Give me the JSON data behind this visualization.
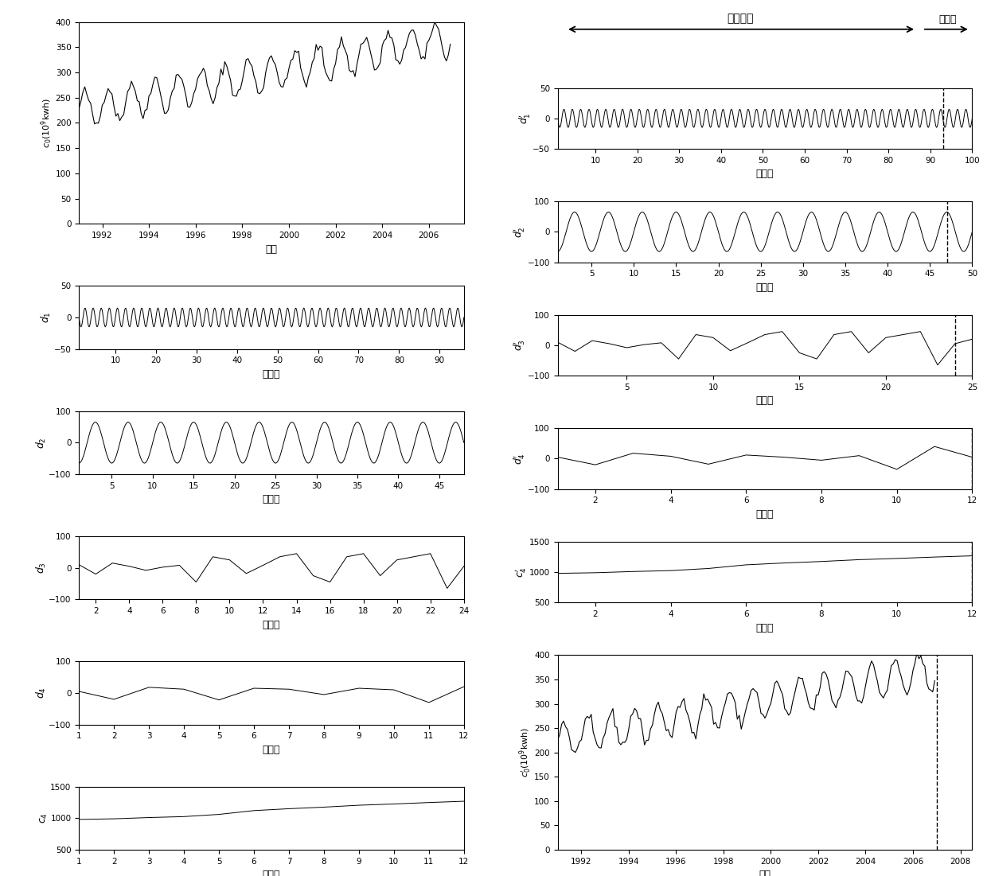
{
  "left_panels": {
    "c0": {
      "ylabel": "c_0(10^9kwh)",
      "xlabel": "年份",
      "xlim": [
        1991.0,
        2007.5
      ],
      "ylim": [
        0,
        400
      ],
      "yticks": [
        0,
        50,
        100,
        150,
        200,
        250,
        300,
        350,
        400
      ],
      "xticks": [
        1992,
        1994,
        1996,
        1998,
        2000,
        2002,
        2004,
        2006
      ]
    },
    "d1": {
      "ylabel": "d_1",
      "xlabel": "采样点",
      "xlim": [
        1,
        96
      ],
      "ylim": [
        -50,
        50
      ],
      "yticks": [
        -50,
        0,
        50
      ],
      "xticks": [
        10,
        20,
        30,
        40,
        50,
        60,
        70,
        80,
        90
      ]
    },
    "d2": {
      "ylabel": "d_2",
      "xlabel": "采样点",
      "xlim": [
        1,
        48
      ],
      "ylim": [
        -100,
        100
      ],
      "yticks": [
        -100,
        0,
        100
      ],
      "xticks": [
        5,
        10,
        15,
        20,
        25,
        30,
        35,
        40,
        45
      ]
    },
    "d3": {
      "ylabel": "d_3",
      "xlabel": "采样点",
      "xlim": [
        1,
        24
      ],
      "ylim": [
        -100,
        100
      ],
      "yticks": [
        -100,
        0,
        100
      ],
      "xticks": [
        2,
        4,
        6,
        8,
        10,
        12,
        14,
        16,
        18,
        20,
        22,
        24
      ]
    },
    "d4": {
      "ylabel": "d_4",
      "xlabel": "采样点",
      "xlim": [
        1,
        12
      ],
      "ylim": [
        -100,
        100
      ],
      "yticks": [
        -100,
        0,
        100
      ],
      "xticks": [
        1,
        2,
        3,
        4,
        5,
        6,
        7,
        8,
        9,
        10,
        11,
        12
      ]
    },
    "c4": {
      "ylabel": "c_4",
      "xlabel": "采样点",
      "xlim": [
        1,
        12
      ],
      "ylim": [
        500,
        1500
      ],
      "yticks": [
        500,
        1000,
        1500
      ],
      "xticks": [
        1,
        2,
        3,
        4,
        5,
        6,
        7,
        8,
        9,
        10,
        11,
        12
      ]
    }
  },
  "right_panels": {
    "hist_label": "历史数据",
    "pred_label": "预测段",
    "dashed_x_d1": 93,
    "dashed_x_d2": 47,
    "dashed_x_d3": 24,
    "dashed_x_d4": 12,
    "dashed_x_c4p": 12,
    "d1p": {
      "ylabel": "d_1'",
      "xlabel": "采样点",
      "xlim": [
        1,
        100
      ],
      "ylim": [
        -50,
        50
      ],
      "yticks": [
        -50,
        0,
        50
      ],
      "xticks": [
        10,
        20,
        30,
        40,
        50,
        60,
        70,
        80,
        90,
        100
      ]
    },
    "d2p": {
      "ylabel": "d_2'",
      "xlabel": "采样点",
      "xlim": [
        1,
        50
      ],
      "ylim": [
        -100,
        100
      ],
      "yticks": [
        -100,
        0,
        100
      ],
      "xticks": [
        5,
        10,
        15,
        20,
        25,
        30,
        35,
        40,
        45,
        50
      ]
    },
    "d3p": {
      "ylabel": "d_3'",
      "xlabel": "采样点",
      "xlim": [
        1,
        25
      ],
      "ylim": [
        -100,
        100
      ],
      "yticks": [
        -100,
        0,
        100
      ],
      "xticks": [
        5,
        10,
        15,
        20,
        25
      ]
    },
    "d4p": {
      "ylabel": "d_4'",
      "xlabel": "采样点",
      "xlim": [
        1,
        12
      ],
      "ylim": [
        -100,
        100
      ],
      "yticks": [
        -100,
        0,
        100
      ],
      "xticks": [
        2,
        4,
        6,
        8,
        10,
        12
      ]
    },
    "c4p": {
      "ylabel": "c_4'",
      "xlabel": "采样点",
      "xlim": [
        1,
        12
      ],
      "ylim": [
        500,
        1500
      ],
      "yticks": [
        500,
        1000,
        1500
      ],
      "xticks": [
        2,
        4,
        6,
        8,
        10,
        12
      ]
    },
    "c0p": {
      "ylabel": "c_0'(10^9kwh)",
      "xlabel": "年份",
      "xlim": [
        1991.0,
        2008.5
      ],
      "ylim": [
        0,
        400
      ],
      "yticks": [
        0,
        50,
        100,
        150,
        200,
        250,
        300,
        350,
        400
      ],
      "xticks": [
        1992,
        1994,
        1996,
        1998,
        2000,
        2002,
        2004,
        2006,
        2008
      ],
      "dashed_x": 2007.0
    }
  }
}
